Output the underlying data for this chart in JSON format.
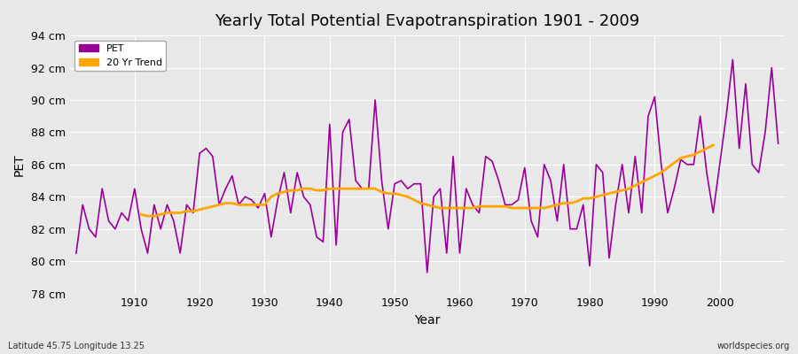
{
  "title": "Yearly Total Potential Evapotranspiration 1901 - 2009",
  "xlabel": "Year",
  "ylabel": "PET",
  "footnote_left": "Latitude 45.75 Longitude 13.25",
  "footnote_right": "worldspecies.org",
  "legend_pet": "PET",
  "legend_trend": "20 Yr Trend",
  "pet_color": "#990099",
  "trend_color": "#FFA500",
  "background_color": "#E8E8E8",
  "grid_color": "#FFFFFF",
  "ylim": [
    78,
    94
  ],
  "yticks": [
    78,
    80,
    82,
    84,
    86,
    88,
    90,
    92,
    94
  ],
  "ytick_labels": [
    "78 cm",
    "80 cm",
    "82 cm",
    "84 cm",
    "86 cm",
    "88 cm",
    "90 cm",
    "92 cm",
    "94 cm"
  ],
  "years": [
    1901,
    1902,
    1903,
    1904,
    1905,
    1906,
    1907,
    1908,
    1909,
    1910,
    1911,
    1912,
    1913,
    1914,
    1915,
    1916,
    1917,
    1918,
    1919,
    1920,
    1921,
    1922,
    1923,
    1924,
    1925,
    1926,
    1927,
    1928,
    1929,
    1930,
    1931,
    1932,
    1933,
    1934,
    1935,
    1936,
    1937,
    1938,
    1939,
    1940,
    1941,
    1942,
    1943,
    1944,
    1945,
    1946,
    1947,
    1948,
    1949,
    1950,
    1951,
    1952,
    1953,
    1954,
    1955,
    1956,
    1957,
    1958,
    1959,
    1960,
    1961,
    1962,
    1963,
    1964,
    1965,
    1966,
    1967,
    1968,
    1969,
    1970,
    1971,
    1972,
    1973,
    1974,
    1975,
    1976,
    1977,
    1978,
    1979,
    1980,
    1981,
    1982,
    1983,
    1984,
    1985,
    1986,
    1987,
    1988,
    1989,
    1990,
    1991,
    1992,
    1993,
    1994,
    1995,
    1996,
    1997,
    1998,
    1999,
    2000,
    2001,
    2002,
    2003,
    2004,
    2005,
    2006,
    2007,
    2008,
    2009
  ],
  "pet_values": [
    80.5,
    83.5,
    82.0,
    81.5,
    84.5,
    82.5,
    82.0,
    83.0,
    82.5,
    84.5,
    82.0,
    80.5,
    83.5,
    82.0,
    83.5,
    82.5,
    80.5,
    83.5,
    83.0,
    86.7,
    87.0,
    86.5,
    83.5,
    84.5,
    85.3,
    83.5,
    84.0,
    83.8,
    83.3,
    84.2,
    81.5,
    83.8,
    85.5,
    83.0,
    85.5,
    84.0,
    83.5,
    81.5,
    81.2,
    88.5,
    81.0,
    88.0,
    88.8,
    85.0,
    84.5,
    84.5,
    90.0,
    85.0,
    82.0,
    84.8,
    85.0,
    84.5,
    84.8,
    84.8,
    79.3,
    84.0,
    84.5,
    80.5,
    86.5,
    80.5,
    84.5,
    83.5,
    83.0,
    86.5,
    86.2,
    85.0,
    83.5,
    83.5,
    83.8,
    85.8,
    82.5,
    81.5,
    86.0,
    85.0,
    82.5,
    86.0,
    82.0,
    82.0,
    83.5,
    79.7,
    86.0,
    85.5,
    80.2,
    83.5,
    86.0,
    83.0,
    86.5,
    83.0,
    89.0,
    90.2,
    86.0,
    83.0,
    84.5,
    86.3,
    86.0,
    86.0,
    89.0,
    85.5,
    83.0,
    86.0,
    89.0,
    92.5,
    87.0,
    91.0,
    86.0,
    85.5,
    88.0,
    92.0,
    87.3
  ],
  "trend_years": [
    1911,
    1912,
    1913,
    1914,
    1915,
    1916,
    1917,
    1918,
    1919,
    1920,
    1921,
    1922,
    1923,
    1924,
    1925,
    1926,
    1927,
    1928,
    1929,
    1930,
    1931,
    1932,
    1933,
    1934,
    1935,
    1936,
    1937,
    1938,
    1939,
    1940,
    1941,
    1942,
    1943,
    1944,
    1945,
    1946,
    1947,
    1948,
    1949,
    1950,
    1951,
    1952,
    1953,
    1954,
    1955,
    1956,
    1957,
    1958,
    1959,
    1960,
    1961,
    1962,
    1963,
    1964,
    1965,
    1966,
    1967,
    1968,
    1969,
    1970,
    1971,
    1972,
    1973,
    1974,
    1975,
    1976,
    1977,
    1978,
    1979,
    1980,
    1981,
    1982,
    1983,
    1984,
    1985,
    1986,
    1987,
    1988,
    1989,
    1990,
    1991,
    1992,
    1993,
    1994,
    1995,
    1996,
    1997,
    1998,
    1999
  ],
  "trend_values": [
    82.9,
    82.8,
    82.8,
    82.9,
    83.0,
    83.0,
    83.0,
    83.1,
    83.1,
    83.2,
    83.3,
    83.4,
    83.5,
    83.6,
    83.6,
    83.5,
    83.5,
    83.5,
    83.5,
    83.5,
    84.0,
    84.2,
    84.3,
    84.4,
    84.4,
    84.5,
    84.5,
    84.4,
    84.4,
    84.5,
    84.5,
    84.5,
    84.5,
    84.5,
    84.5,
    84.5,
    84.5,
    84.3,
    84.2,
    84.2,
    84.1,
    84.0,
    83.8,
    83.6,
    83.5,
    83.4,
    83.3,
    83.3,
    83.3,
    83.3,
    83.3,
    83.3,
    83.4,
    83.4,
    83.4,
    83.4,
    83.4,
    83.3,
    83.3,
    83.3,
    83.3,
    83.3,
    83.3,
    83.4,
    83.5,
    83.6,
    83.6,
    83.7,
    83.9,
    83.9,
    84.0,
    84.1,
    84.2,
    84.3,
    84.4,
    84.5,
    84.7,
    84.9,
    85.1,
    85.3,
    85.5,
    85.8,
    86.1,
    86.4,
    86.5,
    86.6,
    86.8,
    87.0,
    87.2
  ]
}
